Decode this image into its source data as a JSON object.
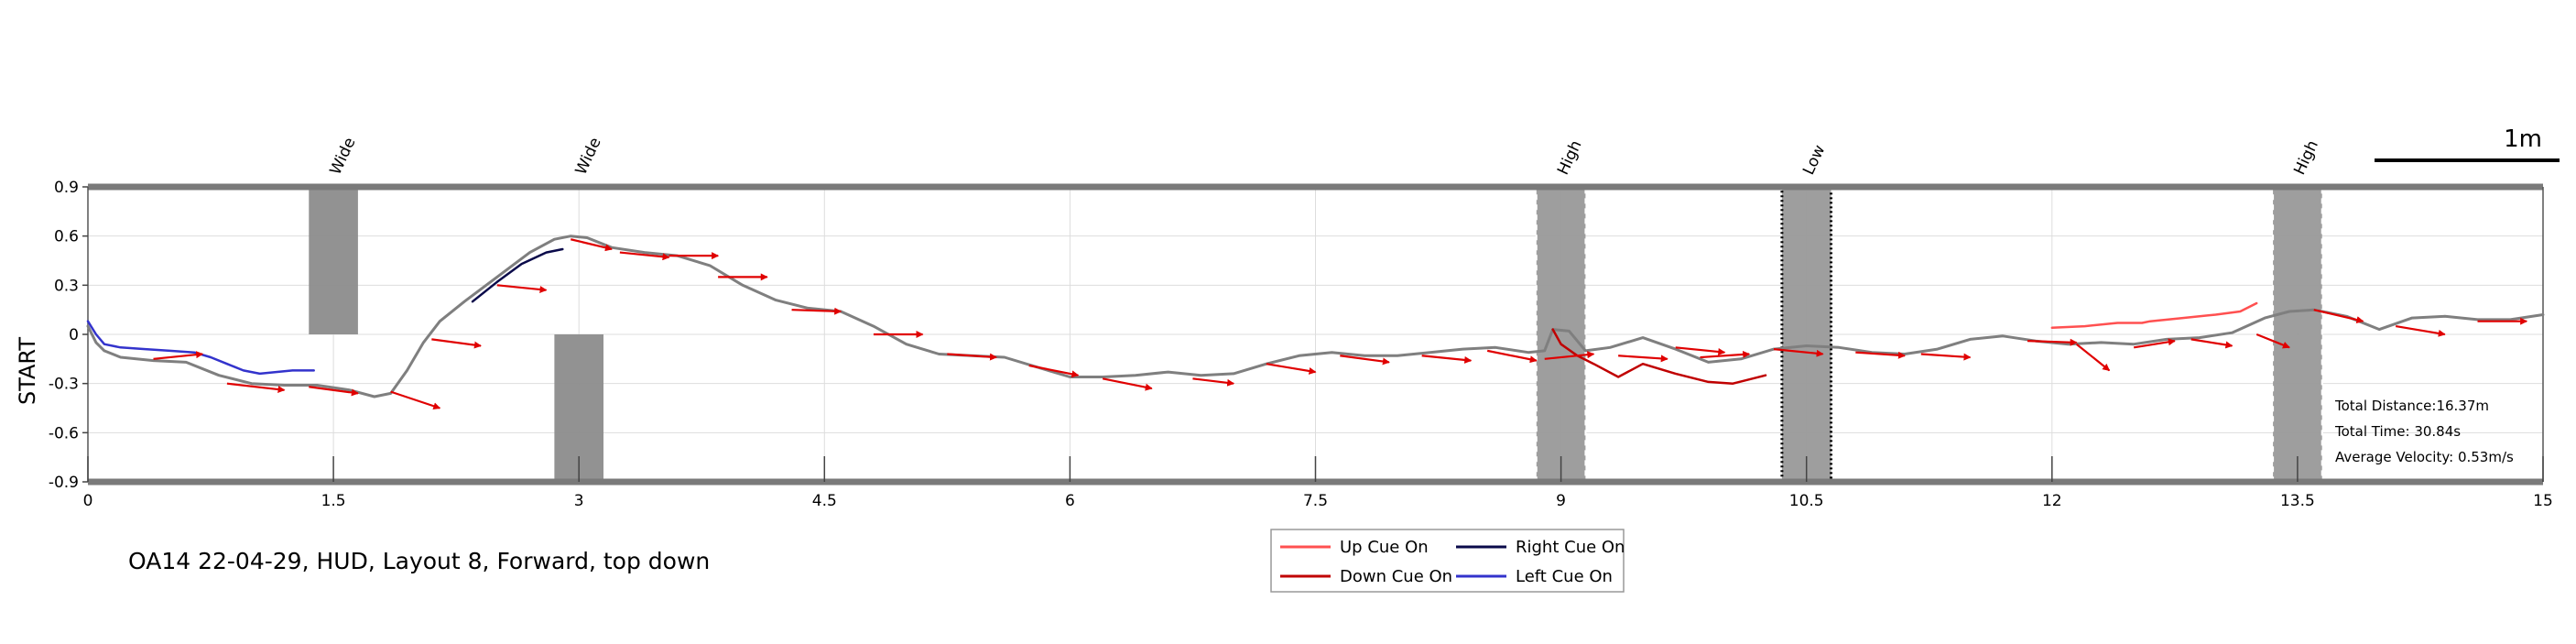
{
  "caption": "OA14 22-04-29, HUD, Layout 8, Forward, top down",
  "chart_data": {
    "type": "line",
    "title": "",
    "xlabel": "",
    "ylabel": "START",
    "xlim": [
      0,
      15
    ],
    "ylim": [
      -0.9,
      0.9
    ],
    "x_ticks": [
      0,
      1.5,
      3,
      4.5,
      6,
      7.5,
      9,
      10.5,
      12,
      13.5,
      15
    ],
    "x_tick_labels": [
      "0",
      "1.5",
      "3",
      "4.5",
      "6",
      "7.5",
      "9",
      "10.5",
      "12",
      "13.5",
      "15"
    ],
    "y_ticks": [
      -0.9,
      -0.6,
      -0.3,
      0,
      0.3,
      0.6,
      0.9
    ],
    "y_tick_labels": [
      "-0.9",
      "-0.6",
      "-0.3",
      "0",
      "0.3",
      "0.6",
      "0.9"
    ],
    "grid": true,
    "scale_bar_label": "1m",
    "obstacles": [
      {
        "label": "Wide",
        "x": [
          1.35,
          1.65
        ],
        "y": [
          0,
          0.9
        ],
        "style": "solid"
      },
      {
        "label": "Wide",
        "x": [
          2.85,
          3.15
        ],
        "y": [
          -0.9,
          0
        ],
        "style": "solid"
      },
      {
        "label": "High",
        "x": [
          8.85,
          9.15
        ],
        "y": [
          -0.9,
          0.9
        ],
        "style": "dashed"
      },
      {
        "label": "Low",
        "x": [
          10.35,
          10.65
        ],
        "y": [
          -0.9,
          0.9
        ],
        "style": "dotted"
      },
      {
        "label": "High",
        "x": [
          13.35,
          13.65
        ],
        "y": [
          -0.9,
          0.9
        ],
        "style": "dashed"
      }
    ],
    "series": [
      {
        "key": "path",
        "color": "#7f7f7f",
        "x": [
          0,
          0.05,
          0.1,
          0.2,
          0.4,
          0.6,
          0.8,
          1.0,
          1.2,
          1.4,
          1.6,
          1.75,
          1.85,
          1.95,
          2.05,
          2.15,
          2.3,
          2.5,
          2.7,
          2.85,
          2.95,
          3.05,
          3.2,
          3.4,
          3.6,
          3.8,
          4.0,
          4.2,
          4.4,
          4.6,
          4.8,
          5.0,
          5.2,
          5.4,
          5.6,
          5.8,
          6.0,
          6.2,
          6.4,
          6.6,
          6.8,
          7.0,
          7.2,
          7.4,
          7.6,
          7.8,
          8.0,
          8.2,
          8.4,
          8.6,
          8.8,
          8.9,
          8.95,
          9.05,
          9.15,
          9.3,
          9.5,
          9.7,
          9.9,
          10.1,
          10.3,
          10.5,
          10.7,
          10.9,
          11.1,
          11.3,
          11.5,
          11.7,
          11.9,
          12.1,
          12.3,
          12.5,
          12.7,
          12.9,
          13.1,
          13.3,
          13.45,
          13.6,
          13.8,
          14.0,
          14.2,
          14.4,
          14.6,
          14.8,
          15.0
        ],
        "y": [
          0.05,
          -0.05,
          -0.1,
          -0.14,
          -0.16,
          -0.17,
          -0.25,
          -0.3,
          -0.31,
          -0.31,
          -0.34,
          -0.38,
          -0.36,
          -0.22,
          -0.05,
          0.08,
          0.2,
          0.35,
          0.5,
          0.58,
          0.6,
          0.59,
          0.53,
          0.5,
          0.48,
          0.42,
          0.3,
          0.21,
          0.16,
          0.14,
          0.05,
          -0.06,
          -0.12,
          -0.13,
          -0.14,
          -0.2,
          -0.26,
          -0.26,
          -0.25,
          -0.23,
          -0.25,
          -0.24,
          -0.18,
          -0.13,
          -0.11,
          -0.13,
          -0.13,
          -0.11,
          -0.09,
          -0.08,
          -0.11,
          -0.1,
          0.03,
          0.02,
          -0.1,
          -0.08,
          -0.02,
          -0.09,
          -0.17,
          -0.15,
          -0.09,
          -0.07,
          -0.08,
          -0.11,
          -0.12,
          -0.09,
          -0.03,
          -0.01,
          -0.04,
          -0.06,
          -0.05,
          -0.06,
          -0.03,
          -0.02,
          0.01,
          0.1,
          0.14,
          0.15,
          0.11,
          0.03,
          0.1,
          0.11,
          0.09,
          0.09,
          0.12
        ]
      },
      {
        "key": "left_cue",
        "name": "Left Cue On",
        "color": "#3333cc",
        "x": [
          0,
          0.05,
          0.1,
          0.2,
          0.35,
          0.5,
          0.65,
          0.75,
          0.85,
          0.95,
          1.05,
          1.15,
          1.25,
          1.38
        ],
        "y": [
          0.08,
          0.0,
          -0.06,
          -0.08,
          -0.09,
          -0.1,
          -0.11,
          -0.14,
          -0.18,
          -0.22,
          -0.24,
          -0.23,
          -0.22,
          -0.22
        ]
      },
      {
        "key": "right_cue",
        "name": "Right Cue On",
        "color": "#0a0a4a",
        "x": [
          2.35,
          2.5,
          2.65,
          2.8,
          2.9
        ],
        "y": [
          0.2,
          0.32,
          0.43,
          0.5,
          0.52
        ]
      },
      {
        "key": "down_cue",
        "name": "Down Cue On",
        "color": "#c00000",
        "x": [
          8.95,
          9.0,
          9.1,
          9.2,
          9.35,
          9.5,
          9.7,
          9.9,
          10.05,
          10.25
        ],
        "y": [
          0.03,
          -0.06,
          -0.13,
          -0.18,
          -0.26,
          -0.18,
          -0.24,
          -0.29,
          -0.3,
          -0.25
        ]
      },
      {
        "key": "up_cue",
        "name": "Up Cue On",
        "color": "#ff5050",
        "x": [
          12.0,
          12.2,
          12.4,
          12.55,
          12.6,
          12.8,
          13.0,
          13.15,
          13.25
        ],
        "y": [
          0.04,
          0.05,
          0.07,
          0.07,
          0.08,
          0.1,
          0.12,
          0.14,
          0.19
        ]
      }
    ],
    "direction_arrows": {
      "color": "#e00000",
      "points": [
        [
          0.4,
          -0.15,
          0.7,
          -0.12
        ],
        [
          0.85,
          -0.3,
          1.2,
          -0.34
        ],
        [
          1.35,
          -0.32,
          1.65,
          -0.36
        ],
        [
          1.85,
          -0.35,
          2.15,
          -0.45
        ],
        [
          2.1,
          -0.03,
          2.4,
          -0.07
        ],
        [
          2.5,
          0.3,
          2.8,
          0.27
        ],
        [
          2.95,
          0.58,
          3.2,
          0.52
        ],
        [
          3.25,
          0.5,
          3.55,
          0.47
        ],
        [
          3.55,
          0.48,
          3.85,
          0.48
        ],
        [
          3.85,
          0.35,
          4.15,
          0.35
        ],
        [
          4.3,
          0.15,
          4.6,
          0.14
        ],
        [
          4.8,
          0.0,
          5.1,
          0.0
        ],
        [
          5.25,
          -0.12,
          5.55,
          -0.14
        ],
        [
          5.75,
          -0.19,
          6.05,
          -0.25
        ],
        [
          6.2,
          -0.27,
          6.5,
          -0.33
        ],
        [
          6.75,
          -0.27,
          7.0,
          -0.3
        ],
        [
          7.2,
          -0.18,
          7.5,
          -0.23
        ],
        [
          7.65,
          -0.13,
          7.95,
          -0.17
        ],
        [
          8.15,
          -0.13,
          8.45,
          -0.16
        ],
        [
          8.55,
          -0.1,
          8.85,
          -0.16
        ],
        [
          8.9,
          -0.15,
          9.2,
          -0.12
        ],
        [
          9.35,
          -0.13,
          9.65,
          -0.15
        ],
        [
          9.7,
          -0.08,
          10.0,
          -0.11
        ],
        [
          9.85,
          -0.14,
          10.15,
          -0.12
        ],
        [
          10.3,
          -0.09,
          10.6,
          -0.12
        ],
        [
          10.8,
          -0.11,
          11.1,
          -0.13
        ],
        [
          11.2,
          -0.12,
          11.5,
          -0.14
        ],
        [
          11.85,
          -0.04,
          12.15,
          -0.05
        ],
        [
          12.15,
          -0.06,
          12.35,
          -0.22
        ],
        [
          12.5,
          -0.08,
          12.75,
          -0.04
        ],
        [
          12.85,
          -0.03,
          13.1,
          -0.07
        ],
        [
          13.25,
          0.0,
          13.45,
          -0.08
        ],
        [
          13.6,
          0.15,
          13.9,
          0.08
        ],
        [
          14.1,
          0.05,
          14.4,
          0.0
        ],
        [
          14.6,
          0.08,
          14.9,
          0.08
        ]
      ]
    },
    "stats": [
      "Total Distance:16.37m",
      "Total Time: 30.84s",
      "Average Velocity: 0.53m/s"
    ],
    "legend": {
      "placement": "bottom-center",
      "entries": [
        {
          "label": "Up Cue On",
          "color": "#ff5050"
        },
        {
          "label": "Right Cue On",
          "color": "#0a0a4a"
        },
        {
          "label": "Down Cue On",
          "color": "#c00000"
        },
        {
          "label": "Left Cue On",
          "color": "#3333cc"
        }
      ]
    }
  }
}
